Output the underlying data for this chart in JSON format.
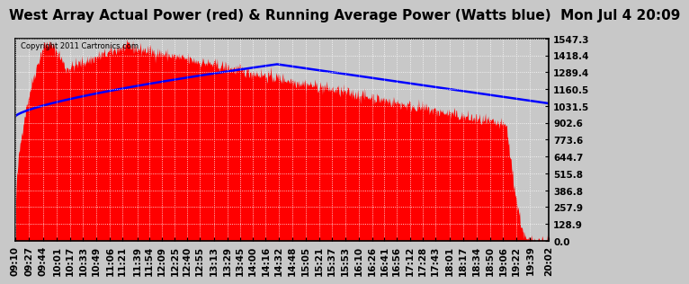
{
  "title": "West Array Actual Power (red) & Running Average Power (Watts blue)  Mon Jul 4 20:09",
  "copyright": "Copyright 2011 Cartronics.com",
  "bg_color": "#c8c8c8",
  "plot_bg_color": "#c8c8c8",
  "actual_color": "red",
  "avg_color": "blue",
  "ymin": 0.0,
  "ymax": 1547.3,
  "yticks": [
    0.0,
    128.9,
    257.9,
    386.8,
    515.8,
    644.7,
    773.6,
    902.6,
    1031.5,
    1160.5,
    1289.4,
    1418.4,
    1547.3
  ],
  "x_labels": [
    "09:10",
    "09:27",
    "09:44",
    "10:01",
    "10:17",
    "10:33",
    "10:49",
    "11:06",
    "11:21",
    "11:39",
    "11:54",
    "12:09",
    "12:25",
    "12:40",
    "12:55",
    "13:13",
    "13:29",
    "13:45",
    "14:00",
    "14:16",
    "14:32",
    "14:48",
    "15:05",
    "15:21",
    "15:37",
    "15:53",
    "16:10",
    "16:26",
    "16:41",
    "16:56",
    "17:12",
    "17:28",
    "17:43",
    "18:01",
    "18:17",
    "18:34",
    "18:50",
    "19:06",
    "19:22",
    "19:39",
    "20:02"
  ],
  "grid_color": "white",
  "title_fontsize": 11,
  "tick_fontsize": 7.5,
  "border_color": "black"
}
